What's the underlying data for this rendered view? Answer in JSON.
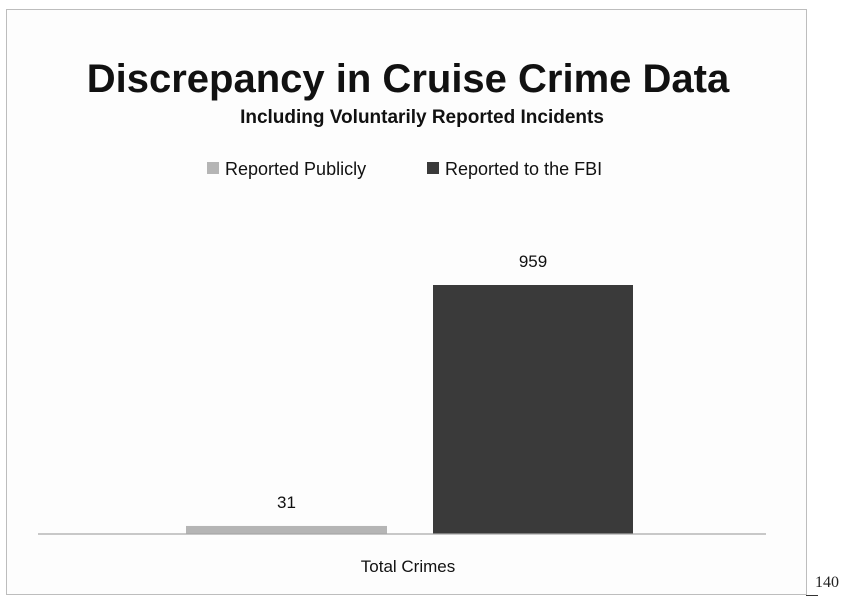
{
  "page": {
    "page_number": "140"
  },
  "chart_data": {
    "type": "bar",
    "title": "Discrepancy in Cruise Crime Data",
    "subtitle": "Including Voluntarily Reported Incidents",
    "categories": [
      "Total Crimes"
    ],
    "series": [
      {
        "name": "Reported Publicly",
        "values": [
          31
        ],
        "color": "#b5b5b5"
      },
      {
        "name": "Reported to the FBI",
        "values": [
          959
        ],
        "color": "#3a3a3a"
      }
    ],
    "data_labels": [
      "31",
      "959"
    ],
    "ylim": [
      0,
      1000
    ],
    "legend_position": "top-center",
    "grid": false,
    "xlabel": "",
    "ylabel": ""
  }
}
